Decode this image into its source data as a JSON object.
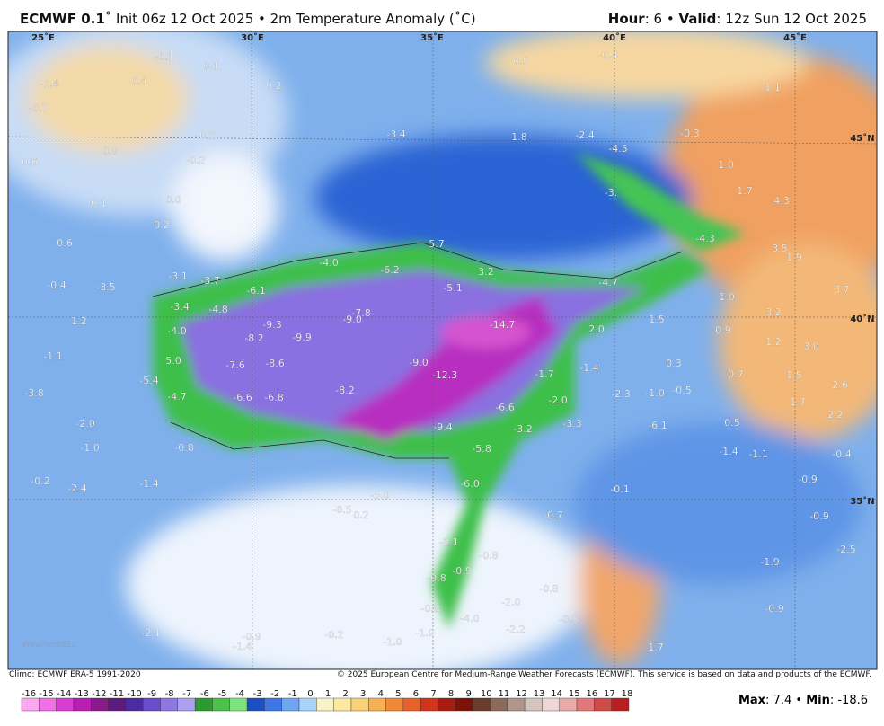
{
  "header": {
    "model": "ECMWF 0.1",
    "details": "˚ Init 06z 12 Oct 2025 • 2m Temperature Anomaly (˚C)",
    "hour_label": "Hour",
    "hour": "6",
    "valid_label": "Valid",
    "valid": "12z Sun 12 Oct 2025"
  },
  "map": {
    "logo": "WeatherBELL",
    "grid_labels": [
      "25˚E",
      "30˚E",
      "35˚E",
      "40˚E",
      "45˚E",
      "45˚N",
      "40˚N",
      "35˚N"
    ],
    "value_labels": [
      "-0.1",
      "0.1",
      "0.4",
      "-1.4",
      "0.2",
      "-0.7",
      "-0.2",
      "0.8",
      "0.6",
      "-0.2",
      "0.0",
      "-0.1",
      "0.2",
      "0.6",
      "-3.4",
      "1.8",
      "-2.4",
      "-4.5",
      "-0.3",
      "0.5",
      "-0.4",
      "-1.1",
      "1.0",
      "1.7",
      "4.3",
      "-3.",
      "5.7",
      "-4.3",
      "3.5",
      "1.9",
      "-4.0",
      "-6.2",
      "3.2",
      "-4.7",
      "-3.1",
      "-3.7",
      "-6.1",
      "-5.1",
      "-0.4",
      "-3.5",
      "1.0",
      "3.2",
      "3.7",
      "-3.4",
      "-4.8",
      "-7.8",
      "-9.0",
      "-14.7",
      "1.5",
      "-9.3",
      "2.0",
      "0.9",
      "1.2",
      "3.0",
      "1.2",
      "-4.0",
      "-8.2",
      "-9.9",
      "-1.1",
      "5.0",
      "-7.6",
      "-8.6",
      "-9.0",
      "-1.4",
      "0.3",
      "0.7",
      "1.5",
      "-12.3",
      "-1.7",
      "-5.4",
      "2.6",
      "-3.8",
      "-4.7",
      "-6.6",
      "-6.8",
      "-8.2",
      "-2.3",
      "-1.0",
      "-0.5",
      "1.7",
      "-2.0",
      "-2.0",
      "2.2",
      "-6.6",
      "-9.4",
      "-3.3",
      "-6.1",
      "0.5",
      "-3.2",
      "-5.8",
      "-0.8",
      "-1.0",
      "-1.4",
      "-1.1",
      "-0.4",
      "-0.2",
      "-2.4",
      "-1.4",
      "-6.0",
      "-0.1",
      "-0.9",
      "-5.0",
      "-0.5",
      "0.2",
      "-0.7",
      "-0.9",
      "-2.1",
      "-2.5",
      "-0.8",
      "-1.9",
      "-0.8",
      "-0.9",
      "-0.8",
      "-2.0",
      "-0.8",
      "-4.0",
      "-0.5",
      "-0.9",
      "-2.2",
      "-1.9",
      "-1.0",
      "-0.2",
      "-2.1",
      "-1.4",
      "-0.9",
      "1.7"
    ]
  },
  "footer": {
    "climo": "Climo: ECMWF ERA-5 1991-2020",
    "copyright": "© 2025 European Centre for Medium-Range Weather Forecasts (ECMWF). This service is based on data and products of the ECMWF."
  },
  "colorbar": {
    "ticks": [
      -16,
      -15,
      -14,
      -13,
      -12,
      -11,
      -10,
      -9,
      -8,
      -7,
      -6,
      -5,
      -4,
      -3,
      -2,
      -1,
      0,
      1,
      2,
      3,
      4,
      5,
      6,
      7,
      8,
      9,
      10,
      11,
      12,
      13,
      14,
      15,
      16,
      17,
      18
    ],
    "colors": [
      "#f9a8f0",
      "#f070e6",
      "#d93cd0",
      "#b81eb0",
      "#8a1a8c",
      "#5c1a7a",
      "#4a2ca0",
      "#6a4ccc",
      "#8c78e0",
      "#ada0ee",
      "#2d9a2d",
      "#4cc24c",
      "#7ee27e",
      "#1c4fc4",
      "#3d78e6",
      "#6ea6f0",
      "#a8d2fa",
      "#f8f4c8",
      "#fde9a0",
      "#fbd27a",
      "#f7b055",
      "#f08a3a",
      "#e8612a",
      "#d5341c",
      "#a81c12",
      "#7c1208",
      "#6a3a2a",
      "#8c6a5a",
      "#b0958a",
      "#d4c4be",
      "#f1d6d6",
      "#eaaaaa",
      "#e07a7a",
      "#d04a4a",
      "#b82020"
    ]
  },
  "stats": {
    "max_label": "Max",
    "max": 7.4,
    "min_label": "Min",
    "min": -18.6
  }
}
